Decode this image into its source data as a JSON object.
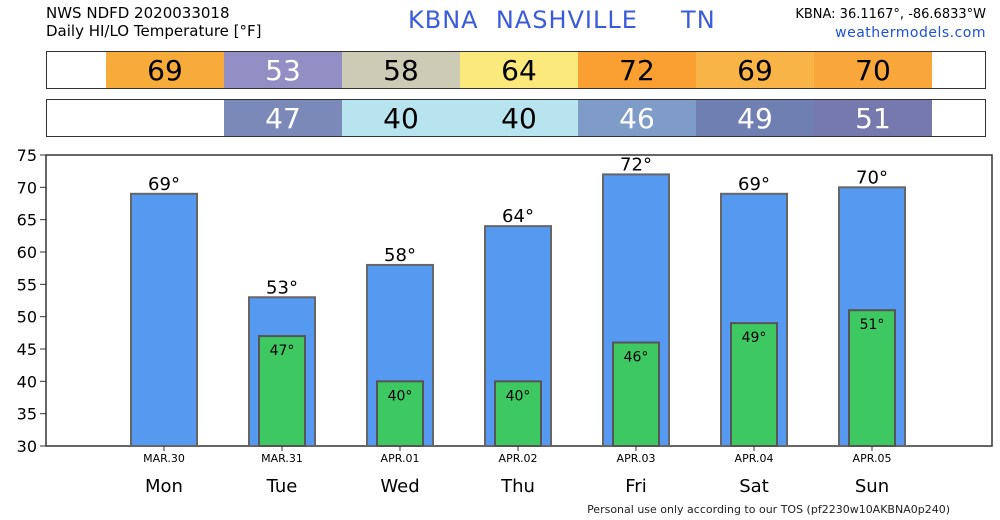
{
  "header": {
    "line1": "NWS NDFD 2020033018",
    "line2": "Daily HI/LO Temperature [°F]",
    "station": "KBNA  NASHVILLE     TN",
    "coords": "KBNA: 36.1167°, -86.6833°W",
    "site": "weathermodels.com"
  },
  "hi_strip": [
    {
      "value": "69",
      "color": "#f7ab3a",
      "text_color": "#000000"
    },
    {
      "value": "53",
      "color": "#938ec4",
      "text_color": "#ffffff"
    },
    {
      "value": "58",
      "color": "#cccbb5",
      "text_color": "#000000"
    },
    {
      "value": "64",
      "color": "#fbe97c",
      "text_color": "#000000"
    },
    {
      "value": "72",
      "color": "#fa9f32",
      "text_color": "#000000"
    },
    {
      "value": "69",
      "color": "#f9b448",
      "text_color": "#000000"
    },
    {
      "value": "70",
      "color": "#f9a63a",
      "text_color": "#000000"
    }
  ],
  "lo_strip": [
    {
      "value": "",
      "color": "#ffffff",
      "text_color": "#000000"
    },
    {
      "value": "47",
      "color": "#7a89b8",
      "text_color": "#ffffff"
    },
    {
      "value": "40",
      "color": "#b8e4f0",
      "text_color": "#000000"
    },
    {
      "value": "40",
      "color": "#b8e4f0",
      "text_color": "#000000"
    },
    {
      "value": "46",
      "color": "#7f9cc8",
      "text_color": "#ffffff"
    },
    {
      "value": "49",
      "color": "#6f7fb2",
      "text_color": "#ffffff"
    },
    {
      "value": "51",
      "color": "#7579ad",
      "text_color": "#ffffff"
    }
  ],
  "chart_data": {
    "type": "bar",
    "categories": [
      "MAR.30",
      "MAR.31",
      "APR.01",
      "APR.02",
      "APR.03",
      "APR.04",
      "APR.05"
    ],
    "days": [
      "Mon",
      "Tue",
      "Wed",
      "Thu",
      "Fri",
      "Sat",
      "Sun"
    ],
    "series": [
      {
        "values": [
          69,
          53,
          58,
          64,
          72,
          69,
          70
        ],
        "labels": [
          "69°",
          "53°",
          "58°",
          "64°",
          "72°",
          "69°",
          "70°"
        ],
        "color": "#5599f0"
      },
      {
        "values": [
          null,
          47,
          40,
          40,
          46,
          49,
          51
        ],
        "labels": [
          "",
          "47°",
          "40°",
          "40°",
          "46°",
          "49°",
          "51°"
        ],
        "color": "#3ec862"
      }
    ],
    "ylim": [
      30,
      75
    ],
    "yticks": [
      30,
      35,
      40,
      45,
      50,
      55,
      60,
      65,
      70,
      75
    ],
    "grid": false
  },
  "footer": "Personal use only according to our TOS (pf2230w10AKBNA0p240)"
}
